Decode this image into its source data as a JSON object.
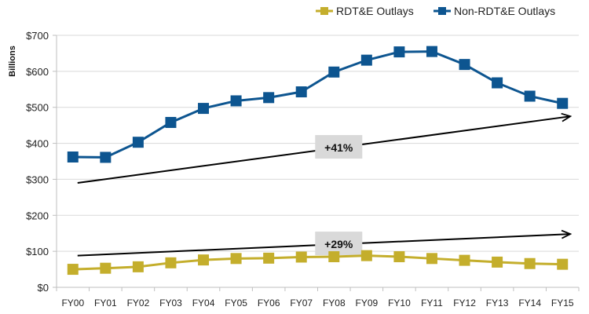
{
  "chart_data": {
    "type": "line",
    "title": "",
    "xlabel": "",
    "ylabel": "Billions",
    "ylim": [
      0,
      700
    ],
    "y_ticks": [
      0,
      100,
      200,
      300,
      400,
      500,
      600,
      700
    ],
    "y_tick_labels": [
      "$0",
      "$100",
      "$200",
      "$300",
      "$400",
      "$500",
      "$600",
      "$700"
    ],
    "grid": "horizontal",
    "legend_position": "top-right",
    "categories": [
      "FY00",
      "FY01",
      "FY02",
      "FY03",
      "FY04",
      "FY05",
      "FY06",
      "FY07",
      "FY08",
      "FY09",
      "FY10",
      "FY11",
      "FY12",
      "FY13",
      "FY14",
      "FY15"
    ],
    "series": [
      {
        "name": "RDT&E Outlays",
        "color": "#C4AE2C",
        "marker": "square",
        "values": [
          50,
          53,
          57,
          68,
          76,
          80,
          81,
          84,
          85,
          88,
          85,
          80,
          75,
          70,
          66,
          64
        ]
      },
      {
        "name": "Non-RDT&E Outlays",
        "color": "#0D5590",
        "marker": "square",
        "values": [
          362,
          361,
          403,
          458,
          497,
          518,
          527,
          543,
          598,
          631,
          654,
          655,
          619,
          568,
          531,
          511
        ]
      }
    ],
    "annotations": [
      {
        "label": "+41%",
        "type": "trend-arrow",
        "from": {
          "x": "FY00",
          "y": 290
        },
        "to": {
          "x": "FY15",
          "y": 475
        },
        "label_at": "FY08"
      },
      {
        "label": "+29%",
        "type": "trend-arrow",
        "from": {
          "x": "FY00",
          "y": 88
        },
        "to": {
          "x": "FY15",
          "y": 148
        },
        "label_at": "FY08"
      }
    ]
  }
}
